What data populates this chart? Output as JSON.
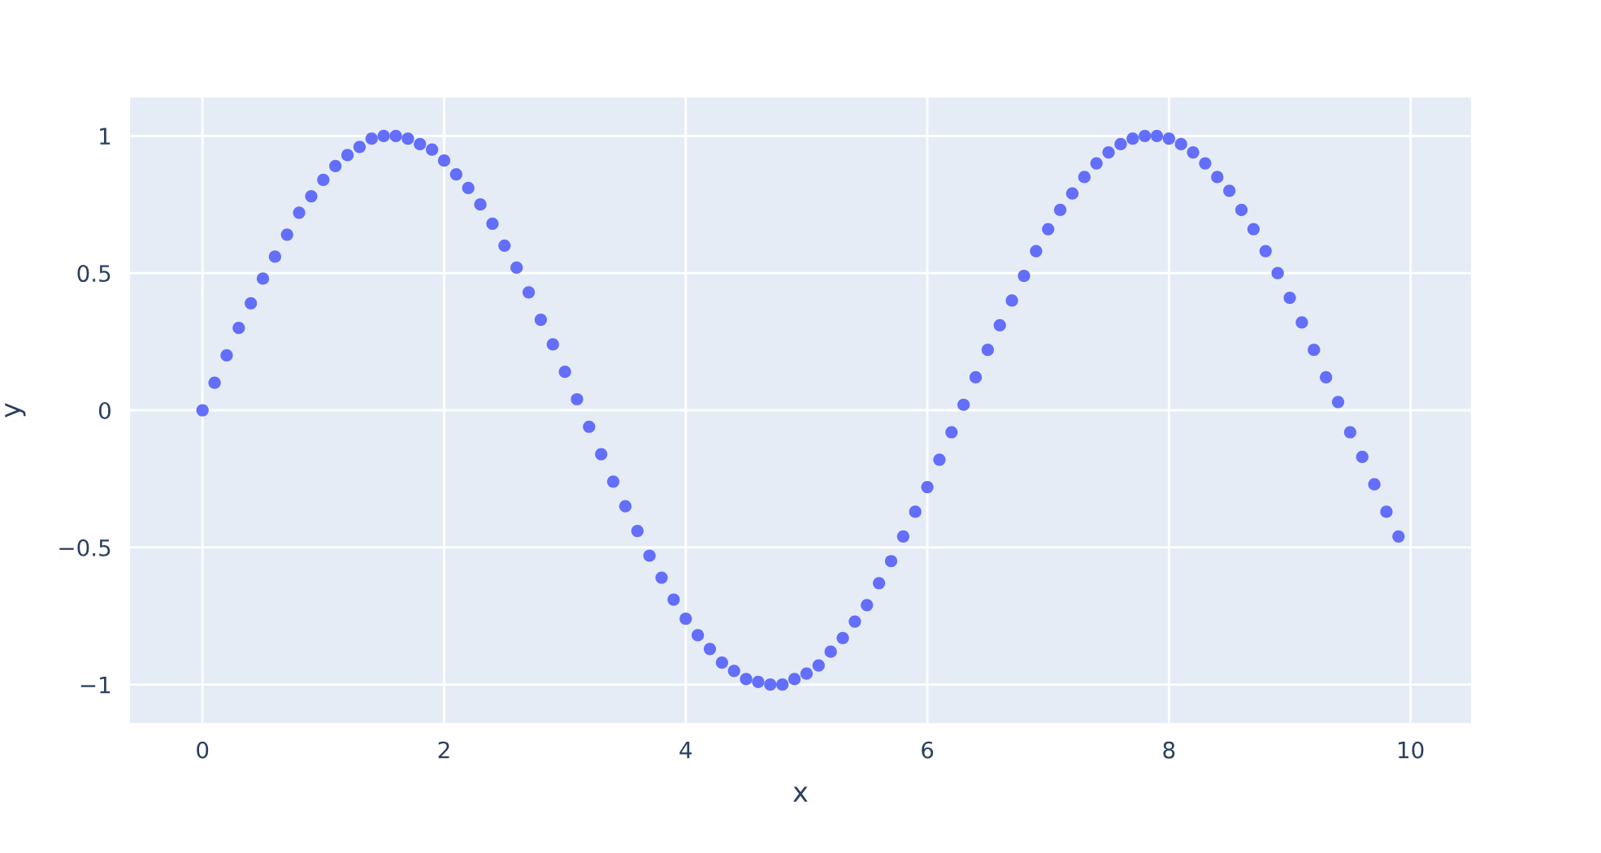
{
  "chart_data": {
    "type": "scatter",
    "xlabel": "x",
    "ylabel": "y",
    "x": [
      0,
      0.1,
      0.2,
      0.3,
      0.4,
      0.5,
      0.6,
      0.7,
      0.8,
      0.9,
      1.0,
      1.1,
      1.2,
      1.3,
      1.4,
      1.5,
      1.6,
      1.7,
      1.8,
      1.9,
      2.0,
      2.1,
      2.2,
      2.3,
      2.4,
      2.5,
      2.6,
      2.7,
      2.8,
      2.9,
      3.0,
      3.1,
      3.2,
      3.3,
      3.4,
      3.5,
      3.6,
      3.7,
      3.8,
      3.9,
      4.0,
      4.1,
      4.2,
      4.3,
      4.4,
      4.5,
      4.6,
      4.7,
      4.8,
      4.9,
      5.0,
      5.1,
      5.2,
      5.3,
      5.4,
      5.5,
      5.6,
      5.7,
      5.8,
      5.9,
      6.0,
      6.1,
      6.2,
      6.3,
      6.4,
      6.5,
      6.6,
      6.7,
      6.8,
      6.9,
      7.0,
      7.1,
      7.2,
      7.3,
      7.4,
      7.5,
      7.6,
      7.7,
      7.8,
      7.9,
      8.0,
      8.1,
      8.2,
      8.3,
      8.4,
      8.5,
      8.6,
      8.7,
      8.8,
      8.9,
      9.0,
      9.1,
      9.2,
      9.3,
      9.4,
      9.5,
      9.6,
      9.7,
      9.8,
      9.9
    ],
    "values": [
      0,
      0.1,
      0.2,
      0.3,
      0.39,
      0.48,
      0.56,
      0.64,
      0.72,
      0.78,
      0.84,
      0.89,
      0.93,
      0.96,
      0.99,
      1.0,
      1.0,
      0.99,
      0.97,
      0.95,
      0.91,
      0.86,
      0.81,
      0.75,
      0.68,
      0.6,
      0.52,
      0.43,
      0.33,
      0.24,
      0.14,
      0.04,
      -0.06,
      -0.16,
      -0.26,
      -0.35,
      -0.44,
      -0.53,
      -0.61,
      -0.69,
      -0.76,
      -0.82,
      -0.87,
      -0.92,
      -0.95,
      -0.98,
      -0.99,
      -1.0,
      -1.0,
      -0.98,
      -0.96,
      -0.93,
      -0.88,
      -0.83,
      -0.77,
      -0.71,
      -0.63,
      -0.55,
      -0.46,
      -0.37,
      -0.28,
      -0.18,
      -0.08,
      0.02,
      0.12,
      0.22,
      0.31,
      0.4,
      0.49,
      0.58,
      0.66,
      0.73,
      0.79,
      0.85,
      0.9,
      0.94,
      0.97,
      0.99,
      1.0,
      1.0,
      0.99,
      0.97,
      0.94,
      0.9,
      0.85,
      0.8,
      0.73,
      0.66,
      0.58,
      0.5,
      0.41,
      0.32,
      0.22,
      0.12,
      0.03,
      -0.08,
      -0.17,
      -0.27,
      -0.37,
      -0.46
    ],
    "color": "#636efa",
    "marker": "circle",
    "grid": true,
    "xlim": [
      -0.6,
      10.5
    ],
    "ylim": [
      -1.14,
      1.14
    ],
    "xticks": [
      0,
      2,
      4,
      6,
      8,
      10
    ],
    "yticks": [
      {
        "value": -1,
        "label": "−1"
      },
      {
        "value": -0.5,
        "label": "−0.5"
      },
      0,
      0.5,
      1
    ]
  }
}
